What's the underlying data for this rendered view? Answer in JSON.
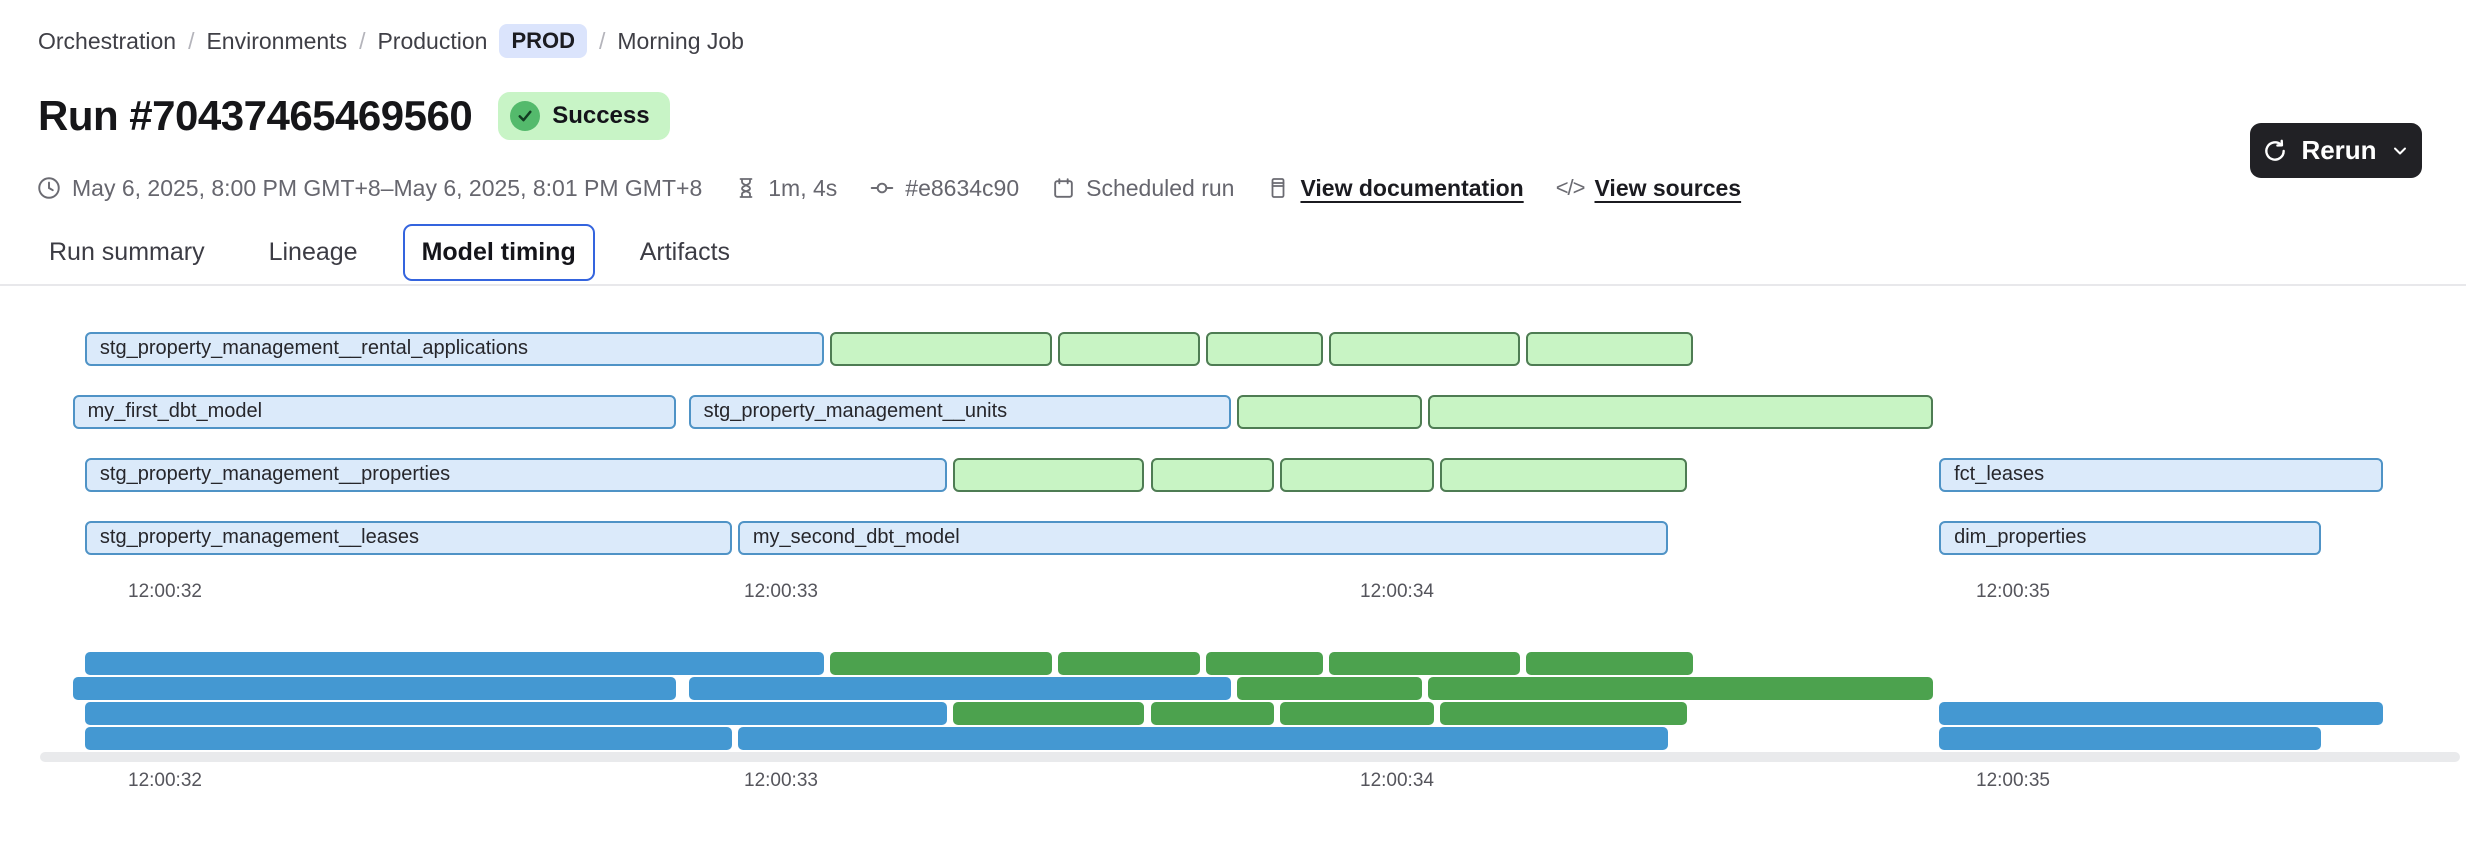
{
  "breadcrumb": {
    "separator": "/",
    "items": [
      {
        "label": "Orchestration"
      },
      {
        "label": "Environments"
      },
      {
        "label": "Production"
      }
    ],
    "env_badge": "PROD",
    "current": "Morning Job"
  },
  "header": {
    "title": "Run #70437465469560",
    "status_badge": "Success"
  },
  "toolbar": {
    "rerun_label": "Rerun"
  },
  "metadata": {
    "time_range": "May 6, 2025, 8:00 PM GMT+8–May 6, 2025, 8:01 PM GMT+8",
    "duration": "1m, 4s",
    "commit_hash": "#e8634c90",
    "trigger": "Scheduled run",
    "docs_link": "View documentation",
    "sources_link": "View sources",
    "code_glyph": "</>"
  },
  "tabs": [
    {
      "label": "Run summary",
      "active": false
    },
    {
      "label": "Lineage",
      "active": false
    },
    {
      "label": "Model timing",
      "active": true
    },
    {
      "label": "Artifacts",
      "active": false
    }
  ],
  "chart_data": {
    "type": "gantt",
    "title": "Model timing",
    "time_axis": {
      "unit": "seconds after 12:00:00",
      "ticks": [
        {
          "time": 32,
          "label": "12:00:32"
        },
        {
          "time": 33,
          "label": "12:00:33"
        },
        {
          "time": 34,
          "label": "12:00:34"
        },
        {
          "time": 35,
          "label": "12:00:35"
        }
      ]
    },
    "colors": {
      "bar_blue_fill": "#dbeafa",
      "bar_blue_border": "#4f93c6",
      "bar_green_fill": "#c8f4c4",
      "bar_green_border": "#4e7c53",
      "minimap_blue": "#4498d2",
      "minimap_green": "#4ca24e"
    },
    "rows": [
      {
        "bars": [
          {
            "label": "stg_property_management__rental_applications",
            "color": "blue",
            "start": 31.87,
            "end": 33.07
          },
          {
            "label": "",
            "color": "green",
            "start": 33.08,
            "end": 33.44
          },
          {
            "label": "",
            "color": "green",
            "start": 33.45,
            "end": 33.68
          },
          {
            "label": "",
            "color": "green",
            "start": 33.69,
            "end": 33.88
          },
          {
            "label": "",
            "color": "green",
            "start": 33.89,
            "end": 34.2
          },
          {
            "label": "",
            "color": "green",
            "start": 34.21,
            "end": 34.48
          }
        ]
      },
      {
        "bars": [
          {
            "label": "my_first_dbt_model",
            "color": "blue",
            "start": 31.85,
            "end": 32.83
          },
          {
            "label": "stg_property_management__units",
            "color": "blue",
            "start": 32.85,
            "end": 33.73
          },
          {
            "label": "",
            "color": "green",
            "start": 33.74,
            "end": 34.04
          },
          {
            "label": "",
            "color": "green",
            "start": 34.05,
            "end": 34.87
          }
        ]
      },
      {
        "bars": [
          {
            "label": "stg_property_management__properties",
            "color": "blue",
            "start": 31.87,
            "end": 33.27
          },
          {
            "label": "",
            "color": "green",
            "start": 33.28,
            "end": 33.59
          },
          {
            "label": "",
            "color": "green",
            "start": 33.6,
            "end": 33.8
          },
          {
            "label": "",
            "color": "green",
            "start": 33.81,
            "end": 34.06
          },
          {
            "label": "",
            "color": "green",
            "start": 34.07,
            "end": 34.47
          },
          {
            "label": "fct_leases",
            "color": "blue",
            "start": 34.88,
            "end": 35.6
          }
        ]
      },
      {
        "bars": [
          {
            "label": "stg_property_management__leases",
            "color": "blue",
            "start": 31.87,
            "end": 32.92
          },
          {
            "label": "my_second_dbt_model",
            "color": "blue",
            "start": 32.93,
            "end": 34.44
          },
          {
            "label": "dim_properties",
            "color": "blue",
            "start": 34.88,
            "end": 35.5
          }
        ]
      }
    ],
    "minimap_mirrors_rows": true
  }
}
